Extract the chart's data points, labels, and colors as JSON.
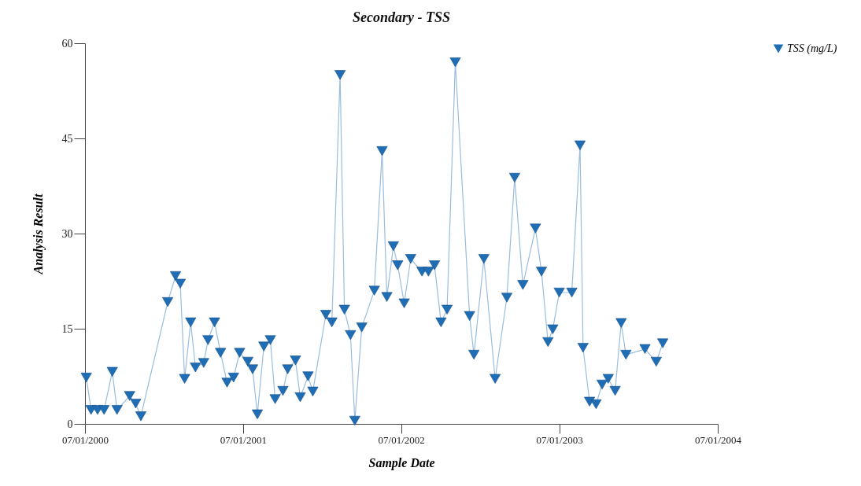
{
  "chart_data": {
    "type": "line",
    "title": "Secondary  - TSS",
    "xlabel": "Sample Date",
    "ylabel": "Analysis Result",
    "x": [
      "2000-07-04",
      "2000-07-15",
      "2000-07-30",
      "2000-08-14",
      "2000-09-02",
      "2000-09-13",
      "2000-10-12",
      "2000-10-26",
      "2000-11-07",
      "2001-01-08",
      "2001-01-26",
      "2001-02-06",
      "2001-02-16",
      "2001-03-02",
      "2001-03-13",
      "2001-04-01",
      "2001-04-11",
      "2001-04-26",
      "2001-05-10",
      "2001-05-25",
      "2001-06-09",
      "2001-06-23",
      "2001-07-12",
      "2001-07-23",
      "2001-08-03",
      "2001-08-18",
      "2001-09-02",
      "2001-09-13",
      "2001-10-01",
      "2001-10-12",
      "2001-10-30",
      "2001-11-10",
      "2001-11-28",
      "2001-12-09",
      "2002-01-08",
      "2002-01-22",
      "2002-02-10",
      "2002-02-20",
      "2002-03-06",
      "2002-03-16",
      "2002-04-01",
      "2002-04-30",
      "2002-05-18",
      "2002-05-29",
      "2002-06-13",
      "2002-06-23",
      "2002-07-08",
      "2002-07-23",
      "2002-08-18",
      "2002-09-02",
      "2002-09-16",
      "2002-10-01",
      "2002-10-15",
      "2002-11-03",
      "2002-12-06",
      "2002-12-16",
      "2003-01-08",
      "2003-02-03",
      "2003-03-02",
      "2003-03-20",
      "2003-04-08",
      "2003-05-07",
      "2003-05-21",
      "2003-06-05",
      "2003-06-16",
      "2003-07-01",
      "2003-07-30",
      "2003-08-18",
      "2003-08-25",
      "2003-09-09",
      "2003-09-24",
      "2003-10-08",
      "2003-10-22",
      "2003-11-07",
      "2003-11-21",
      "2003-12-02",
      "2004-01-15",
      "2004-02-10",
      "2004-02-25"
    ],
    "series": [
      {
        "name": "TSS (mg/L)",
        "color": "#1f6db4",
        "values": [
          7.3,
          2.2,
          2.2,
          2.2,
          8.2,
          2.2,
          4.4,
          3.2,
          1.2,
          19.2,
          23.3,
          22.1,
          7.1,
          16,
          8.9,
          9.6,
          13.2,
          16,
          11.2,
          6.5,
          7.3,
          11.2,
          9.8,
          8.6,
          1.5,
          12.2,
          13.2,
          3.9,
          5.2,
          8.6,
          10,
          4.2,
          7.5,
          5.1,
          17.2,
          16,
          55,
          18,
          14,
          0.5,
          15.2,
          21,
          43,
          20,
          28,
          25,
          19,
          26,
          24,
          24,
          25,
          16,
          18,
          57,
          17,
          10.9,
          26,
          7.1,
          19.9,
          38.8,
          21.9,
          30.8,
          24,
          12.9,
          14.9,
          20.7,
          20.7,
          43.9,
          12,
          3.5,
          3.1,
          6.2,
          7.1,
          5.2,
          15.9,
          10.9,
          11.8,
          9.8,
          12.7
        ]
      }
    ],
    "xlim": [
      "2000-07-01",
      "2004-07-01"
    ],
    "xticks": [
      {
        "value": "2000-07-01",
        "label": "07/01/2000"
      },
      {
        "value": "2001-07-01",
        "label": "07/01/2001"
      },
      {
        "value": "2002-07-01",
        "label": "07/01/2002"
      },
      {
        "value": "2003-07-01",
        "label": "07/01/2003"
      },
      {
        "value": "2004-07-01",
        "label": "07/01/2004"
      }
    ],
    "ylim": [
      0,
      60
    ],
    "yticks": [
      0,
      15,
      30,
      45,
      60
    ],
    "grid": false,
    "legend": "right",
    "marker": "triangle",
    "line_style": "solid"
  }
}
